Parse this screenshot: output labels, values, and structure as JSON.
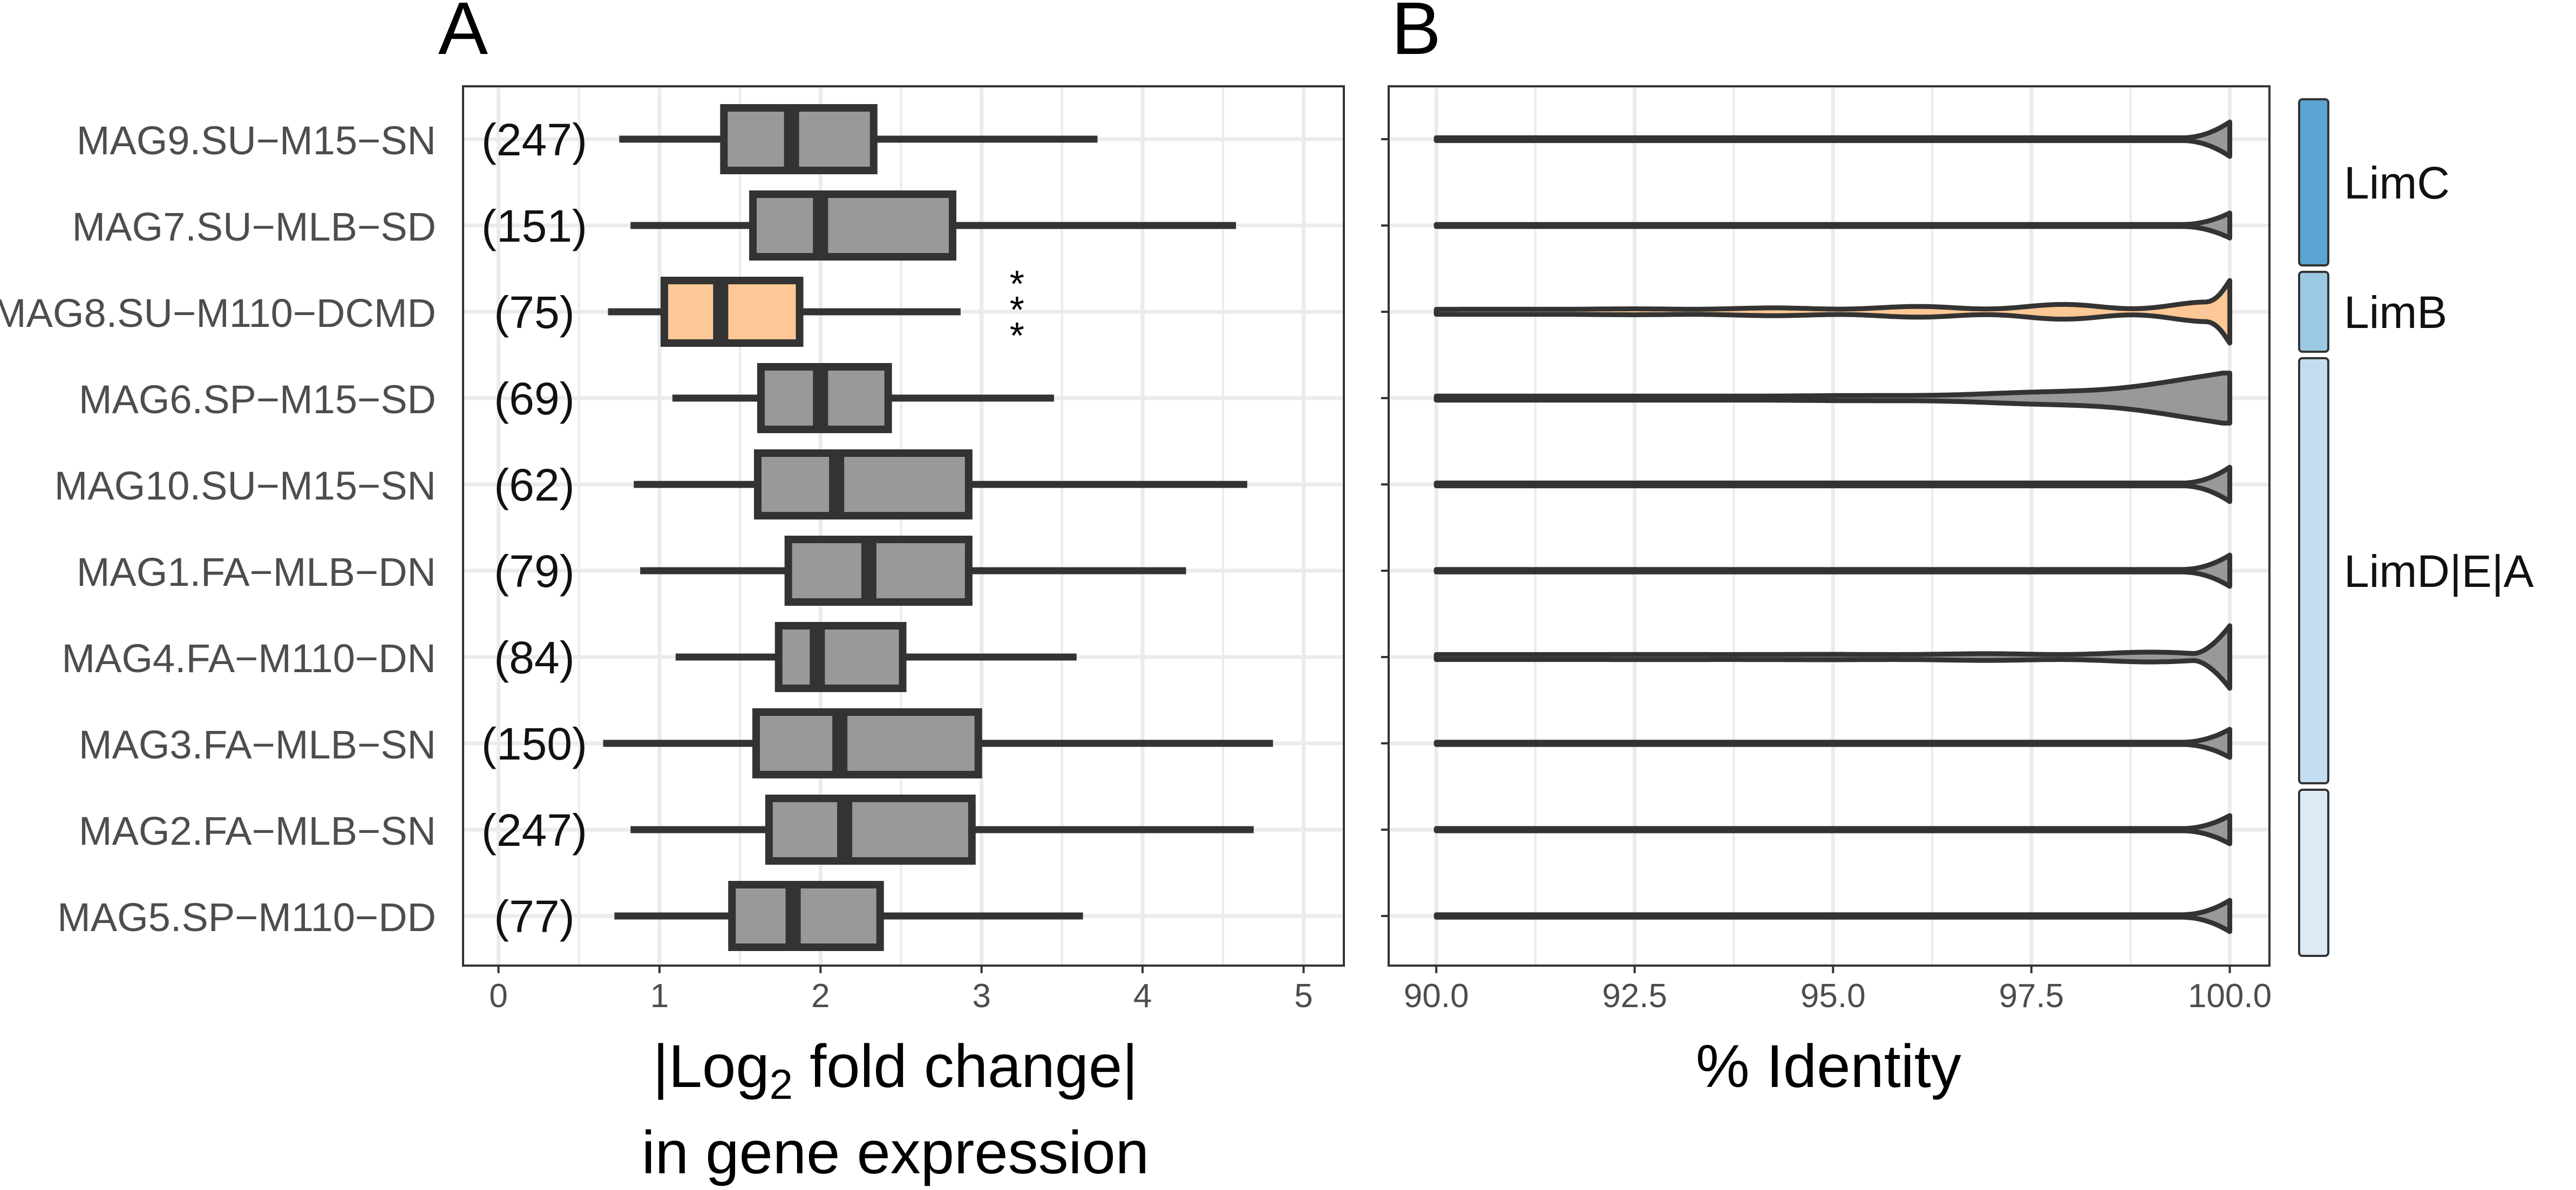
{
  "chart_data": [
    {
      "panel": "A",
      "type": "boxplot",
      "orientation": "horizontal",
      "categories": [
        "MAG9.SU−M15−SN",
        "MAG7.SU−MLB−SD",
        "MAG8.SU−M110−DCMD",
        "MAG6.SP−M15−SD",
        "MAG10.SU−M15−SN",
        "MAG1.FA−MLB−DN",
        "MAG4.FA−M110−DN",
        "MAG3.FA−MLB−SN",
        "MAG2.FA−MLB−SN",
        "MAG5.SP−M110−DD"
      ],
      "counts": [
        "(247)",
        "(151)",
        "(75)",
        "(69)",
        "(62)",
        "(79)",
        "(84)",
        "(150)",
        "(247)",
        "(77)"
      ],
      "boxes": [
        {
          "min": 0.75,
          "q1": 1.4,
          "median": 1.82,
          "q3": 2.33,
          "max": 3.72,
          "fill": "#999999"
        },
        {
          "min": 0.82,
          "q1": 1.58,
          "median": 2.0,
          "q3": 2.82,
          "max": 4.58,
          "fill": "#999999"
        },
        {
          "min": 0.68,
          "q1": 1.03,
          "median": 1.38,
          "q3": 1.87,
          "max": 2.87,
          "fill": "#fdc895"
        },
        {
          "min": 1.08,
          "q1": 1.63,
          "median": 2.0,
          "q3": 2.42,
          "max": 3.45,
          "fill": "#999999"
        },
        {
          "min": 0.84,
          "q1": 1.61,
          "median": 2.1,
          "q3": 2.92,
          "max": 4.65,
          "fill": "#999999"
        },
        {
          "min": 0.88,
          "q1": 1.8,
          "median": 2.3,
          "q3": 2.92,
          "max": 4.27,
          "fill": "#999999"
        },
        {
          "min": 1.1,
          "q1": 1.74,
          "median": 1.98,
          "q3": 2.51,
          "max": 3.59,
          "fill": "#999999"
        },
        {
          "min": 0.65,
          "q1": 1.6,
          "median": 2.12,
          "q3": 2.98,
          "max": 4.81,
          "fill": "#999999"
        },
        {
          "min": 0.82,
          "q1": 1.68,
          "median": 2.15,
          "q3": 2.94,
          "max": 4.69,
          "fill": "#999999"
        },
        {
          "min": 0.72,
          "q1": 1.45,
          "median": 1.83,
          "q3": 2.37,
          "max": 3.63,
          "fill": "#999999"
        }
      ],
      "annotation": {
        "category_index": 2,
        "text": "***",
        "x": 3.22
      },
      "xlim": [
        -0.22,
        5.25
      ],
      "xticks": [
        "0",
        "1",
        "2",
        "3",
        "4",
        "5"
      ],
      "xlabel_line1": "|Log",
      "xlabel_sub": "2",
      "xlabel_line1_rest": " fold change|",
      "xlabel_line2": "in gene expression",
      "grid": true
    },
    {
      "panel": "B",
      "type": "violin",
      "orientation": "horizontal",
      "xlim": [
        89.4,
        100.5
      ],
      "xticks": [
        "90.0",
        "92.5",
        "95.0",
        "97.5",
        "100.0"
      ],
      "xlabel": "% Identity",
      "grid": true,
      "violins": [
        {
          "fill": "#999999",
          "max_half_width": 0.55,
          "profile": "tail"
        },
        {
          "fill": "#999999",
          "max_half_width": 0.4,
          "profile": "tail"
        },
        {
          "fill": "#fdc895",
          "max_half_width": 1.0,
          "profile": "wavy"
        },
        {
          "fill": "#999999",
          "max_half_width": 0.8,
          "profile": "rising"
        },
        {
          "fill": "#999999",
          "max_half_width": 0.55,
          "profile": "tail"
        },
        {
          "fill": "#999999",
          "max_half_width": 0.5,
          "profile": "tail"
        },
        {
          "fill": "#999999",
          "max_half_width": 1.0,
          "profile": "bump"
        },
        {
          "fill": "#999999",
          "max_half_width": 0.45,
          "profile": "tail"
        },
        {
          "fill": "#999999",
          "max_half_width": 0.45,
          "profile": "tail"
        },
        {
          "fill": "#999999",
          "max_half_width": 0.5,
          "profile": "tail"
        }
      ]
    }
  ],
  "panel_labels": {
    "a": "A",
    "b": "B"
  },
  "groups": [
    {
      "label": "LimC",
      "color": "#5aa5d2",
      "rows": [
        0,
        1
      ]
    },
    {
      "label": "LimB",
      "color": "#9bc9e3",
      "rows": [
        2,
        2
      ]
    },
    {
      "label": "LimD|E|A",
      "color": "#c3dcef",
      "rows": [
        3,
        7
      ]
    },
    {
      "label": "",
      "color": "#dceaf6",
      "rows": [
        8,
        9
      ]
    }
  ],
  "colors": {
    "highlight": "#fdc895",
    "box": "#999999",
    "line": "#333333",
    "grid": "#ebebeb"
  }
}
